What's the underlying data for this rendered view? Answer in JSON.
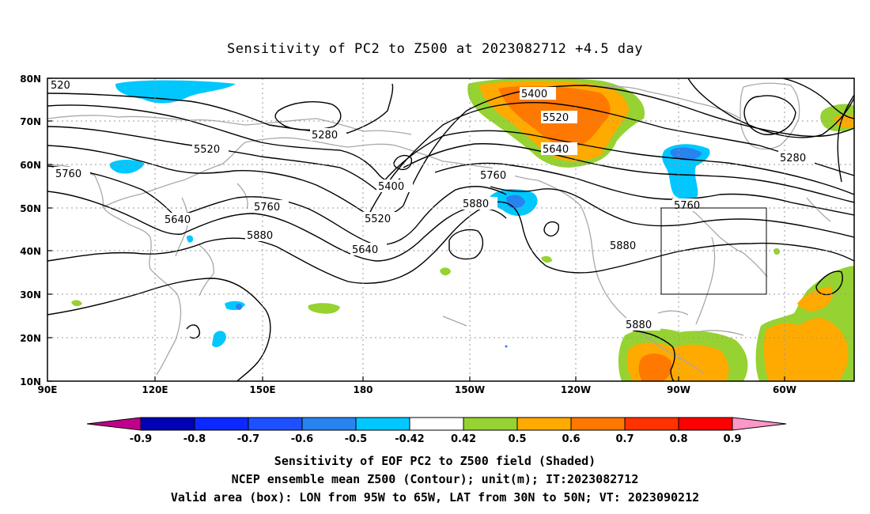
{
  "title": "Sensitivity of PC2 to Z500 at 2023082712 +4.5 day",
  "map": {
    "lat_ticks": [
      "80N",
      "70N",
      "60N",
      "50N",
      "40N",
      "30N",
      "20N",
      "10N"
    ],
    "lon_ticks": [
      "90E",
      "120E",
      "150E",
      "180",
      "150W",
      "120W",
      "90W",
      "60W"
    ],
    "valid_box": {
      "lon_from": "95W",
      "lon_to": "65W",
      "lat_from": "30N",
      "lat_to": "50N"
    },
    "contour_labels": [
      "520",
      "5280",
      "5400",
      "5520",
      "5640",
      "5760",
      "5880"
    ]
  },
  "colorbar": {
    "labels": [
      "-0.9",
      "-0.8",
      "-0.7",
      "-0.6",
      "-0.5",
      "-0.42",
      "0.42",
      "0.5",
      "0.6",
      "0.7",
      "0.8",
      "0.9"
    ],
    "colors": {
      "below": "#c0008c",
      "bins": [
        "#0000b4",
        "#0a28ff",
        "#1e50ff",
        "#2882f0",
        "#00c8ff",
        "#ffffff",
        "#96d232",
        "#ffaa00",
        "#ff7800",
        "#ff3200",
        "#ff0000"
      ],
      "above": "#ff96c8"
    }
  },
  "caption": {
    "line1": "Sensitivity of EOF PC2 to Z500 field (Shaded)",
    "line2": "NCEP ensemble mean Z500 (Contour); unit(m); IT:2023082712",
    "line3": "Valid area (box): LON from 95W to 65W, LAT from 30N to 50N; VT: 2023090212"
  },
  "shading_colors": {
    "light_blue": "#00c8ff",
    "mid_blue": "#2882f0",
    "green": "#96d232",
    "orange": "#ffaa00",
    "dark_orange": "#ff7800"
  }
}
